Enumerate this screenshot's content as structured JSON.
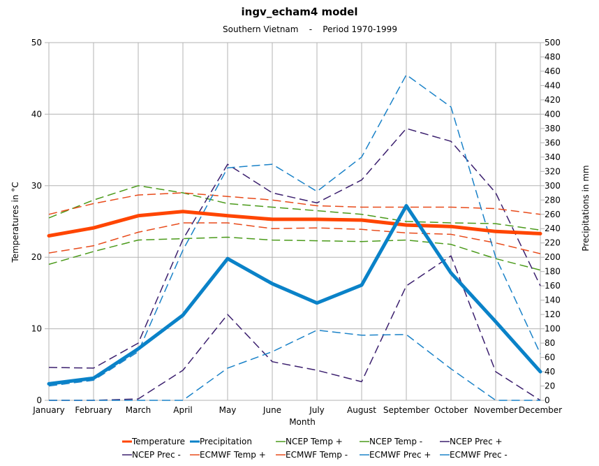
{
  "chart_data": {
    "type": "line",
    "title": "ingv_echam4 model",
    "subtitle": "Southern Vietnam    -    Period 1970-1999",
    "xlabel": "Month",
    "ylabel_left": "Temperatures in °C",
    "ylabel_right": "Precipitations in mm",
    "ylim_left": [
      0,
      50
    ],
    "ylim_right": [
      0,
      500
    ],
    "yticks_left": [
      0,
      10,
      20,
      30,
      40,
      50
    ],
    "yticks_right": [
      0,
      20,
      40,
      60,
      80,
      100,
      120,
      140,
      160,
      180,
      200,
      220,
      240,
      260,
      280,
      300,
      320,
      340,
      360,
      380,
      400,
      420,
      440,
      460,
      480,
      500
    ],
    "grid": true,
    "legend_position": "bottom",
    "categories": [
      "January",
      "February",
      "March",
      "April",
      "May",
      "June",
      "July",
      "August",
      "September",
      "October",
      "November",
      "December"
    ],
    "series": [
      {
        "name": "Temperature",
        "axis": "left",
        "color": "#ff4500",
        "style": "solid-thick",
        "values": [
          23.0,
          24.1,
          25.8,
          26.4,
          25.8,
          25.3,
          25.3,
          25.2,
          24.5,
          24.3,
          23.6,
          23.3
        ]
      },
      {
        "name": "Precipitation",
        "axis": "right",
        "color": "#0a82c8",
        "style": "solid-thick",
        "values": [
          23,
          31,
          72,
          119,
          198,
          163,
          136,
          161,
          272,
          178,
          110,
          40
        ]
      },
      {
        "name": "NCEP Temp +",
        "axis": "left",
        "color": "#4a9a1a",
        "style": "dash",
        "values": [
          25.5,
          28.0,
          30.0,
          29.0,
          27.5,
          27.0,
          26.5,
          26.0,
          25.0,
          24.8,
          24.7,
          23.8
        ]
      },
      {
        "name": "NCEP Temp -",
        "axis": "left",
        "color": "#4a9a1a",
        "style": "dash",
        "values": [
          19.0,
          20.8,
          22.4,
          22.6,
          22.8,
          22.4,
          22.3,
          22.2,
          22.4,
          21.8,
          19.8,
          18.2
        ]
      },
      {
        "name": "NCEP Prec +",
        "axis": "right",
        "color": "#3b1f6e",
        "style": "dash",
        "values": [
          46,
          45,
          80,
          225,
          330,
          290,
          276,
          308,
          380,
          362,
          290,
          160
        ]
      },
      {
        "name": "NCEP Prec -",
        "axis": "right",
        "color": "#3b1f6e",
        "style": "dash",
        "values": [
          0,
          0,
          2,
          42,
          120,
          54,
          42,
          26,
          160,
          202,
          40,
          0
        ]
      },
      {
        "name": "ECMWF Temp +",
        "axis": "left",
        "color": "#e84a1a",
        "style": "dash",
        "values": [
          26.0,
          27.5,
          28.7,
          29.0,
          28.5,
          28.0,
          27.2,
          27.0,
          27.0,
          27.0,
          26.8,
          26.0
        ]
      },
      {
        "name": "ECMWF Temp -",
        "axis": "left",
        "color": "#e84a1a",
        "style": "dash",
        "values": [
          20.6,
          21.6,
          23.5,
          24.8,
          24.8,
          24.0,
          24.1,
          23.9,
          23.4,
          23.2,
          22.0,
          20.5
        ]
      },
      {
        "name": "ECMWF Prec +",
        "axis": "right",
        "color": "#1a82c8",
        "style": "dash",
        "values": [
          20,
          28,
          68,
          210,
          325,
          330,
          292,
          340,
          455,
          410,
          200,
          65
        ]
      },
      {
        "name": "ECMWF Prec -",
        "axis": "right",
        "color": "#1a82c8",
        "style": "dash",
        "values": [
          0,
          0,
          0,
          0,
          45,
          68,
          98,
          91,
          92,
          44,
          0,
          0
        ]
      }
    ]
  }
}
